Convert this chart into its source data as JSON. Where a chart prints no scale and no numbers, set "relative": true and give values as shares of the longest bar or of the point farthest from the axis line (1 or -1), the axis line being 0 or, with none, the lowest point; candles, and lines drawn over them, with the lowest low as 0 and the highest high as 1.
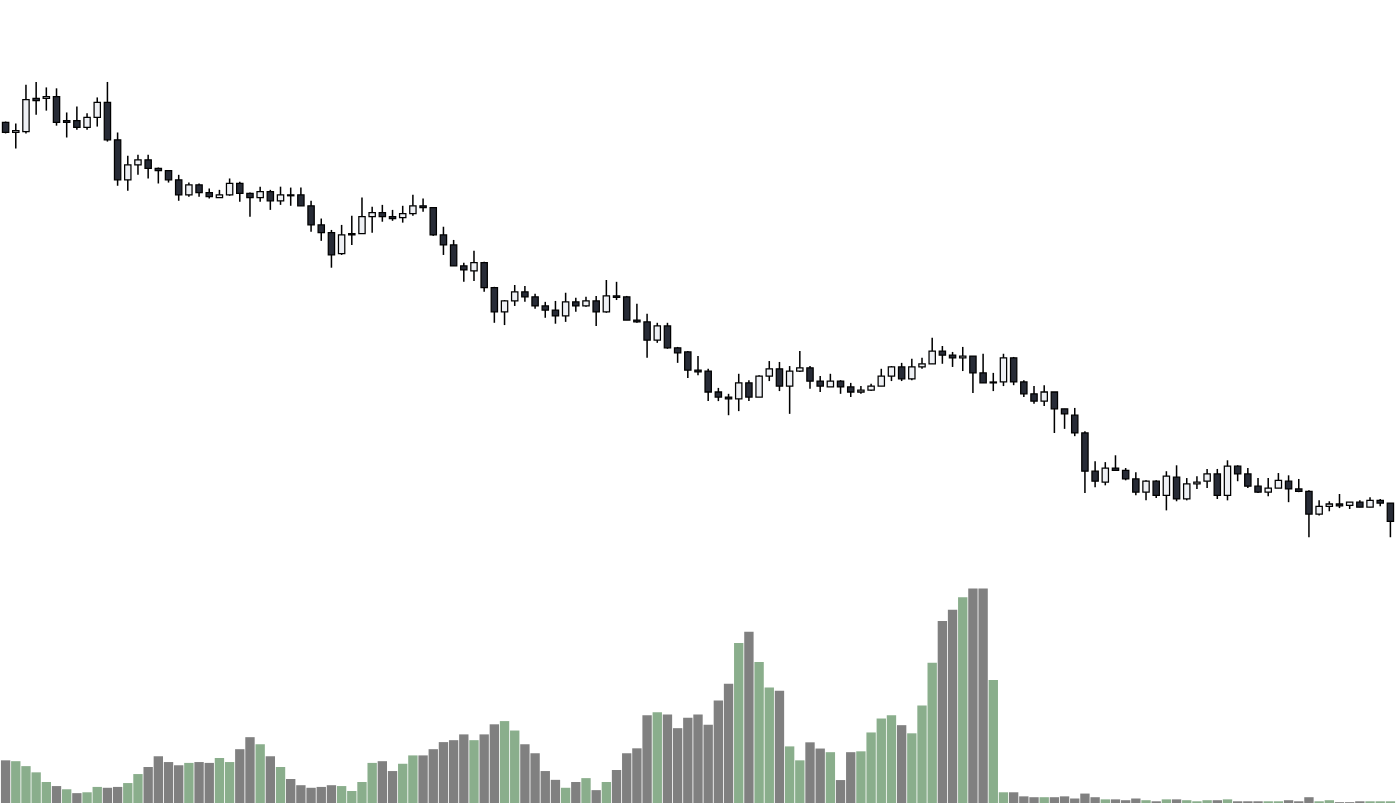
{
  "chart_data": [
    {
      "type": "candlestick",
      "relative": true,
      "categories": [
        null,
        null,
        null,
        null,
        null,
        null,
        null,
        null,
        null,
        null,
        null,
        null,
        null,
        null,
        null,
        null,
        null,
        null,
        null,
        null,
        null,
        null,
        null,
        null,
        null,
        null,
        null,
        null,
        null,
        null,
        null,
        null,
        null,
        null,
        null,
        null,
        null,
        null,
        null,
        null,
        null,
        null,
        null,
        null,
        null,
        null,
        null,
        null,
        null,
        null,
        null,
        null,
        null,
        null,
        null,
        null,
        null,
        null,
        null,
        null,
        null,
        null,
        null,
        null,
        null,
        null,
        null,
        null,
        null,
        null,
        null,
        null,
        null,
        null,
        null,
        null,
        null,
        null,
        null,
        null,
        null,
        null,
        null,
        null,
        null,
        null,
        null,
        null,
        null,
        null,
        null,
        null,
        null,
        null,
        null,
        null,
        null,
        null,
        null,
        null,
        null,
        null,
        null,
        null,
        null,
        null,
        null,
        null,
        null,
        null,
        null,
        null,
        null,
        null,
        null,
        null,
        null,
        null,
        null,
        null,
        null,
        null,
        null,
        null,
        null,
        null,
        null,
        null,
        null,
        null,
        null,
        null,
        null,
        null,
        null,
        null,
        null
      ],
      "ohlc": [
        [
          0.911,
          0.913,
          0.887,
          0.889
        ],
        [
          0.889,
          0.909,
          0.854,
          0.893
        ],
        [
          0.891,
          0.994,
          0.887,
          0.961
        ],
        [
          0.964,
          1,
          0.928,
          0.959
        ],
        [
          0.964,
          0.988,
          0.937,
          0.968
        ],
        [
          0.968,
          0.986,
          0.904,
          0.911
        ],
        [
          0.915,
          0.933,
          0.878,
          0.911
        ],
        [
          0.915,
          0.946,
          0.895,
          0.9
        ],
        [
          0.9,
          0.931,
          0.895,
          0.922
        ],
        [
          0.922,
          0.966,
          0.902,
          0.955
        ],
        [
          0.955,
          1,
          0.869,
          0.873
        ],
        [
          0.873,
          0.889,
          0.772,
          0.785
        ],
        [
          0.785,
          0.838,
          0.761,
          0.818
        ],
        [
          0.818,
          0.84,
          0.796,
          0.829
        ],
        [
          0.829,
          0.84,
          0.788,
          0.81
        ],
        [
          0.81,
          0.812,
          0.777,
          0.805
        ],
        [
          0.805,
          0.805,
          0.779,
          0.785
        ],
        [
          0.785,
          0.796,
          0.739,
          0.752
        ],
        [
          0.752,
          0.779,
          0.748,
          0.774
        ],
        [
          0.774,
          0.777,
          0.748,
          0.757
        ],
        [
          0.757,
          0.766,
          0.744,
          0.748
        ],
        [
          0.746,
          0.763,
          0.746,
          0.752
        ],
        [
          0.752,
          0.788,
          0.75,
          0.777
        ],
        [
          0.777,
          0.781,
          0.737,
          0.755
        ],
        [
          0.755,
          0.757,
          0.704,
          0.746
        ],
        [
          0.746,
          0.77,
          0.737,
          0.759
        ],
        [
          0.759,
          0.763,
          0.719,
          0.739
        ],
        [
          0.739,
          0.77,
          0.73,
          0.752
        ],
        [
          0.752,
          0.768,
          0.728,
          0.75
        ],
        [
          0.752,
          0.768,
          0.728,
          0.728
        ],
        [
          0.728,
          0.739,
          0.671,
          0.686
        ],
        [
          0.686,
          0.7,
          0.651,
          0.669
        ],
        [
          0.669,
          0.675,
          0.592,
          0.62
        ],
        [
          0.623,
          0.686,
          0.62,
          0.664
        ],
        [
          0.664,
          0.706,
          0.642,
          0.667
        ],
        [
          0.667,
          0.746,
          0.667,
          0.704
        ],
        [
          0.704,
          0.726,
          0.669,
          0.713
        ],
        [
          0.713,
          0.73,
          0.693,
          0.704
        ],
        [
          0.704,
          0.719,
          0.695,
          0.7
        ],
        [
          0.702,
          0.728,
          0.691,
          0.711
        ],
        [
          0.711,
          0.752,
          0.706,
          0.728
        ],
        [
          0.728,
          0.744,
          0.715,
          0.724
        ],
        [
          0.724,
          0.724,
          0.662,
          0.664
        ],
        [
          0.664,
          0.682,
          0.62,
          0.642
        ],
        [
          0.642,
          0.653,
          0.596,
          0.596
        ],
        [
          0.596,
          0.603,
          0.561,
          0.587
        ],
        [
          0.585,
          0.629,
          0.563,
          0.603
        ],
        [
          0.603,
          0.605,
          0.539,
          0.548
        ],
        [
          0.548,
          0.55,
          0.471,
          0.495
        ],
        [
          0.495,
          0.521,
          0.466,
          0.519
        ],
        [
          0.519,
          0.554,
          0.508,
          0.539
        ],
        [
          0.539,
          0.552,
          0.517,
          0.528
        ],
        [
          0.528,
          0.535,
          0.502,
          0.508
        ],
        [
          0.508,
          0.517,
          0.482,
          0.499
        ],
        [
          0.499,
          0.519,
          0.469,
          0.486
        ],
        [
          0.486,
          0.537,
          0.473,
          0.517
        ],
        [
          0.517,
          0.526,
          0.495,
          0.508
        ],
        [
          0.508,
          0.528,
          0.506,
          0.519
        ],
        [
          0.519,
          0.53,
          0.464,
          0.495
        ],
        [
          0.495,
          0.565,
          0.493,
          0.53
        ],
        [
          0.53,
          0.561,
          0.521,
          0.527
        ],
        [
          0.528,
          0.53,
          0.477,
          0.477
        ],
        [
          0.477,
          0.513,
          0.471,
          0.473
        ],
        [
          0.473,
          0.491,
          0.394,
          0.433
        ],
        [
          0.433,
          0.471,
          0.427,
          0.464
        ],
        [
          0.464,
          0.471,
          0.414,
          0.416
        ],
        [
          0.416,
          0.418,
          0.383,
          0.405
        ],
        [
          0.407,
          0.409,
          0.35,
          0.367
        ],
        [
          0.367,
          0.398,
          0.356,
          0.363
        ],
        [
          0.365,
          0.37,
          0.299,
          0.319
        ],
        [
          0.319,
          0.328,
          0.299,
          0.308
        ],
        [
          0.308,
          0.315,
          0.268,
          0.304
        ],
        [
          0.304,
          0.359,
          0.277,
          0.339
        ],
        [
          0.339,
          0.345,
          0.299,
          0.308
        ],
        [
          0.308,
          0.356,
          0.308,
          0.354
        ],
        [
          0.354,
          0.387,
          0.343,
          0.37
        ],
        [
          0.37,
          0.385,
          0.321,
          0.332
        ],
        [
          0.332,
          0.376,
          0.271,
          0.365
        ],
        [
          0.365,
          0.409,
          0.363,
          0.372
        ],
        [
          0.372,
          0.376,
          0.326,
          0.343
        ],
        [
          0.343,
          0.354,
          0.319,
          0.332
        ],
        [
          0.33,
          0.359,
          0.33,
          0.343
        ],
        [
          0.343,
          0.345,
          0.315,
          0.33
        ],
        [
          0.33,
          0.339,
          0.308,
          0.319
        ],
        [
          0.319,
          0.332,
          0.315,
          0.323
        ],
        [
          0.323,
          0.337,
          0.321,
          0.332
        ],
        [
          0.332,
          0.37,
          0.332,
          0.354
        ],
        [
          0.354,
          0.376,
          0.343,
          0.374
        ],
        [
          0.374,
          0.383,
          0.343,
          0.348
        ],
        [
          0.348,
          0.392,
          0.345,
          0.374
        ],
        [
          0.374,
          0.394,
          0.37,
          0.381
        ],
        [
          0.381,
          0.438,
          0.381,
          0.409
        ],
        [
          0.409,
          0.42,
          0.381,
          0.4
        ],
        [
          0.4,
          0.407,
          0.374,
          0.394
        ],
        [
          0.394,
          0.418,
          0.365,
          0.398
        ],
        [
          0.398,
          0.398,
          0.317,
          0.361
        ],
        [
          0.361,
          0.403,
          0.339,
          0.339
        ],
        [
          0.339,
          0.361,
          0.321,
          0.341
        ],
        [
          0.341,
          0.403,
          0.332,
          0.394
        ],
        [
          0.394,
          0.396,
          0.334,
          0.341
        ],
        [
          0.341,
          0.345,
          0.308,
          0.315
        ],
        [
          0.315,
          0.332,
          0.293,
          0.299
        ],
        [
          0.299,
          0.334,
          0.288,
          0.319
        ],
        [
          0.319,
          0.319,
          0.229,
          0.282
        ],
        [
          0.282,
          0.282,
          0.238,
          0.271
        ],
        [
          0.268,
          0.284,
          0.222,
          0.229
        ],
        [
          0.229,
          0.233,
          0.097,
          0.145
        ],
        [
          0.145,
          0.167,
          0.11,
          0.123
        ],
        [
          0.121,
          0.165,
          0.114,
          0.152
        ],
        [
          0.152,
          0.18,
          0.147,
          0.147
        ],
        [
          0.147,
          0.152,
          0.125,
          0.128
        ],
        [
          0.128,
          0.143,
          0.092,
          0.099
        ],
        [
          0.099,
          0.125,
          0.081,
          0.123
        ],
        [
          0.123,
          0.125,
          0.086,
          0.092
        ],
        [
          0.092,
          0.145,
          0.059,
          0.134
        ],
        [
          0.132,
          0.158,
          0.079,
          0.084
        ],
        [
          0.084,
          0.13,
          0.081,
          0.117
        ],
        [
          0.117,
          0.134,
          0.106,
          0.121
        ],
        [
          0.123,
          0.15,
          0.108,
          0.139
        ],
        [
          0.139,
          0.15,
          0.084,
          0.092
        ],
        [
          0.092,
          0.169,
          0.081,
          0.156
        ],
        [
          0.156,
          0.158,
          0.123,
          0.139
        ],
        [
          0.139,
          0.152,
          0.108,
          0.112
        ],
        [
          0.112,
          0.13,
          0.097,
          0.099
        ],
        [
          0.099,
          0.13,
          0.09,
          0.108
        ],
        [
          0.108,
          0.141,
          0.108,
          0.125
        ],
        [
          0.123,
          0.136,
          0.077,
          0.106
        ],
        [
          0.106,
          0.128,
          0.099,
          0.101
        ],
        [
          0.101,
          0.103,
          0,
          0.051
        ],
        [
          0.051,
          0.081,
          0.048,
          0.068
        ],
        [
          0.068,
          0.079,
          0.057,
          0.073
        ],
        [
          0.073,
          0.095,
          0.064,
          0.069
        ],
        [
          0.07,
          0.077,
          0.062,
          0.077
        ],
        [
          0.077,
          0.081,
          0.066,
          0.066
        ],
        [
          0.066,
          0.088,
          0.066,
          0.081
        ],
        [
          0.081,
          0.084,
          0.068,
          0.075
        ],
        [
          0.075,
          0.075,
          0,
          0.035
        ]
      ],
      "colors": [
        "#272b36",
        "#eef0f4",
        "#eef0f4",
        "#272b36",
        "#eef0f4",
        "#272b36",
        "#272b36",
        "#272b36",
        "#eef0f4",
        "#eef0f4",
        "#272b36",
        "#272b36",
        "#eef0f4",
        "#eef0f4",
        "#272b36",
        "#272b36",
        "#272b36",
        "#272b36",
        "#eef0f4",
        "#272b36",
        "#272b36",
        "#eef0f4",
        "#eef0f4",
        "#272b36",
        "#272b36",
        "#eef0f4",
        "#272b36",
        "#eef0f4",
        "#272b36",
        "#272b36",
        "#272b36",
        "#272b36",
        "#272b36",
        "#eef0f4",
        "#eef0f4",
        "#eef0f4",
        "#eef0f4",
        "#272b36",
        "#272b36",
        "#eef0f4",
        "#eef0f4",
        "#272b36",
        "#272b36",
        "#272b36",
        "#272b36",
        "#272b36",
        "#eef0f4",
        "#272b36",
        "#272b36",
        "#eef0f4",
        "#eef0f4",
        "#272b36",
        "#272b36",
        "#272b36",
        "#272b36",
        "#eef0f4",
        "#272b36",
        "#eef0f4",
        "#272b36",
        "#eef0f4",
        "#272b36",
        "#272b36",
        "#272b36",
        "#272b36",
        "#eef0f4",
        "#272b36",
        "#272b36",
        "#272b36",
        "#272b36",
        "#272b36",
        "#272b36",
        "#272b36",
        "#eef0f4",
        "#272b36",
        "#eef0f4",
        "#eef0f4",
        "#272b36",
        "#eef0f4",
        "#eef0f4",
        "#272b36",
        "#272b36",
        "#eef0f4",
        "#272b36",
        "#272b36",
        "#eef0f4",
        "#eef0f4",
        "#eef0f4",
        "#eef0f4",
        "#272b36",
        "#eef0f4",
        "#eef0f4",
        "#eef0f4",
        "#272b36",
        "#272b36",
        "#eef0f4",
        "#272b36",
        "#272b36",
        "#eef0f4",
        "#eef0f4",
        "#272b36",
        "#272b36",
        "#272b36",
        "#eef0f4",
        "#272b36",
        "#272b36",
        "#272b36",
        "#272b36",
        "#272b36",
        "#eef0f4",
        "#272b36",
        "#272b36",
        "#272b36",
        "#eef0f4",
        "#272b36",
        "#eef0f4",
        "#272b36",
        "#eef0f4",
        "#eef0f4",
        "#eef0f4",
        "#272b36",
        "#eef0f4",
        "#272b36",
        "#272b36",
        "#272b36",
        "#eef0f4",
        "#eef0f4",
        "#272b36",
        "#272b36",
        "#272b36",
        "#eef0f4",
        "#eef0f4",
        "#272b36",
        "#eef0f4",
        "#272b36",
        "#eef0f4",
        "#272b36",
        "#272b36"
      ]
    },
    {
      "type": "bar",
      "relative": true,
      "categories": [
        null,
        null,
        null,
        null,
        null,
        null,
        null,
        null,
        null,
        null,
        null,
        null,
        null,
        null,
        null,
        null,
        null,
        null,
        null,
        null,
        null,
        null,
        null,
        null,
        null,
        null,
        null,
        null,
        null,
        null,
        null,
        null,
        null,
        null,
        null,
        null,
        null,
        null,
        null,
        null,
        null,
        null,
        null,
        null,
        null,
        null,
        null,
        null,
        null,
        null,
        null,
        null,
        null,
        null,
        null,
        null,
        null,
        null,
        null,
        null,
        null,
        null,
        null,
        null,
        null,
        null,
        null,
        null,
        null,
        null,
        null,
        null,
        null,
        null,
        null,
        null,
        null,
        null,
        null,
        null,
        null,
        null,
        null,
        null,
        null,
        null,
        null,
        null,
        null,
        null,
        null,
        null,
        null,
        null,
        null,
        null,
        null,
        null,
        null,
        null,
        null,
        null,
        null,
        null,
        null,
        null,
        null,
        null,
        null,
        null,
        null,
        null,
        null,
        null,
        null,
        null,
        null,
        null,
        null,
        null,
        null,
        null,
        null,
        null,
        null,
        null,
        null,
        null,
        null,
        null,
        null,
        null,
        null,
        null,
        null,
        null,
        null
      ],
      "values": [
        0.199,
        0.195,
        0.172,
        0.143,
        0.098,
        0.079,
        0.064,
        0.046,
        0.05,
        0.075,
        0.071,
        0.075,
        0.093,
        0.135,
        0.168,
        0.218,
        0.191,
        0.176,
        0.187,
        0.191,
        0.187,
        0.21,
        0.191,
        0.251,
        0.307,
        0.274,
        0.218,
        0.168,
        0.112,
        0.083,
        0.071,
        0.075,
        0.083,
        0.079,
        0.056,
        0.098,
        0.187,
        0.195,
        0.149,
        0.183,
        0.222,
        0.222,
        0.251,
        0.284,
        0.293,
        0.32,
        0.293,
        0.32,
        0.367,
        0.382,
        0.338,
        0.274,
        0.232,
        0.149,
        0.108,
        0.071,
        0.098,
        0.116,
        0.06,
        0.098,
        0.154,
        0.232,
        0.255,
        0.409,
        0.423,
        0.413,
        0.349,
        0.398,
        0.413,
        0.365,
        0.478,
        0.556,
        0.746,
        0.799,
        0.658,
        0.539,
        0.524,
        0.264,
        0.199,
        0.283,
        0.254,
        0.237,
        0.107,
        0.237,
        0.241,
        0.329,
        0.394,
        0.409,
        0.363,
        0.325,
        0.455,
        0.654,
        0.849,
        0.901,
        0.96,
        1,
        1,
        0.574,
        0.05,
        0.05,
        0.031,
        0.027,
        0.027,
        0.027,
        0.031,
        0.021,
        0.044,
        0.027,
        0.017,
        0.017,
        0.013,
        0.021,
        0.013,
        0.008,
        0.017,
        0.017,
        0.013,
        0.008,
        0.013,
        0.013,
        0.017,
        0.008,
        0.008,
        0.008,
        0.008,
        0.008,
        0.013,
        0.008,
        0.027,
        0.008,
        0.013,
        0.004,
        0.004,
        0.008,
        0.008,
        0.008,
        0.008
      ],
      "colors": [
        "#808080",
        "#8aae8c",
        "#8aae8c",
        "#8aae8c",
        "#8aae8c",
        "#808080",
        "#8aae8c",
        "#808080",
        "#8aae8c",
        "#8aae8c",
        "#808080",
        "#808080",
        "#8aae8c",
        "#8aae8c",
        "#808080",
        "#808080",
        "#808080",
        "#808080",
        "#8aae8c",
        "#808080",
        "#808080",
        "#8aae8c",
        "#8aae8c",
        "#808080",
        "#808080",
        "#8aae8c",
        "#808080",
        "#8aae8c",
        "#808080",
        "#808080",
        "#808080",
        "#808080",
        "#808080",
        "#8aae8c",
        "#8aae8c",
        "#8aae8c",
        "#8aae8c",
        "#808080",
        "#808080",
        "#8aae8c",
        "#8aae8c",
        "#808080",
        "#808080",
        "#808080",
        "#808080",
        "#808080",
        "#8aae8c",
        "#808080",
        "#808080",
        "#8aae8c",
        "#8aae8c",
        "#808080",
        "#808080",
        "#808080",
        "#808080",
        "#8aae8c",
        "#808080",
        "#8aae8c",
        "#808080",
        "#8aae8c",
        "#808080",
        "#808080",
        "#808080",
        "#808080",
        "#8aae8c",
        "#808080",
        "#808080",
        "#808080",
        "#808080",
        "#808080",
        "#808080",
        "#808080",
        "#8aae8c",
        "#808080",
        "#8aae8c",
        "#8aae8c",
        "#808080",
        "#8aae8c",
        "#8aae8c",
        "#808080",
        "#808080",
        "#8aae8c",
        "#808080",
        "#808080",
        "#8aae8c",
        "#8aae8c",
        "#8aae8c",
        "#8aae8c",
        "#808080",
        "#8aae8c",
        "#8aae8c",
        "#8aae8c",
        "#808080",
        "#808080",
        "#8aae8c",
        "#808080",
        "#808080",
        "#8aae8c",
        "#8aae8c",
        "#808080",
        "#808080",
        "#808080",
        "#8aae8c",
        "#808080",
        "#808080",
        "#808080",
        "#808080",
        "#808080",
        "#8aae8c",
        "#808080",
        "#808080",
        "#808080",
        "#8aae8c",
        "#808080",
        "#8aae8c",
        "#808080",
        "#8aae8c",
        "#8aae8c",
        "#8aae8c",
        "#808080",
        "#8aae8c",
        "#808080",
        "#808080",
        "#808080",
        "#8aae8c",
        "#8aae8c",
        "#808080",
        "#808080",
        "#808080",
        "#8aae8c",
        "#8aae8c",
        "#808080",
        "#808080",
        "#808080",
        "#8aae8c",
        "#8aae8c",
        "#8aae8c"
      ]
    }
  ]
}
